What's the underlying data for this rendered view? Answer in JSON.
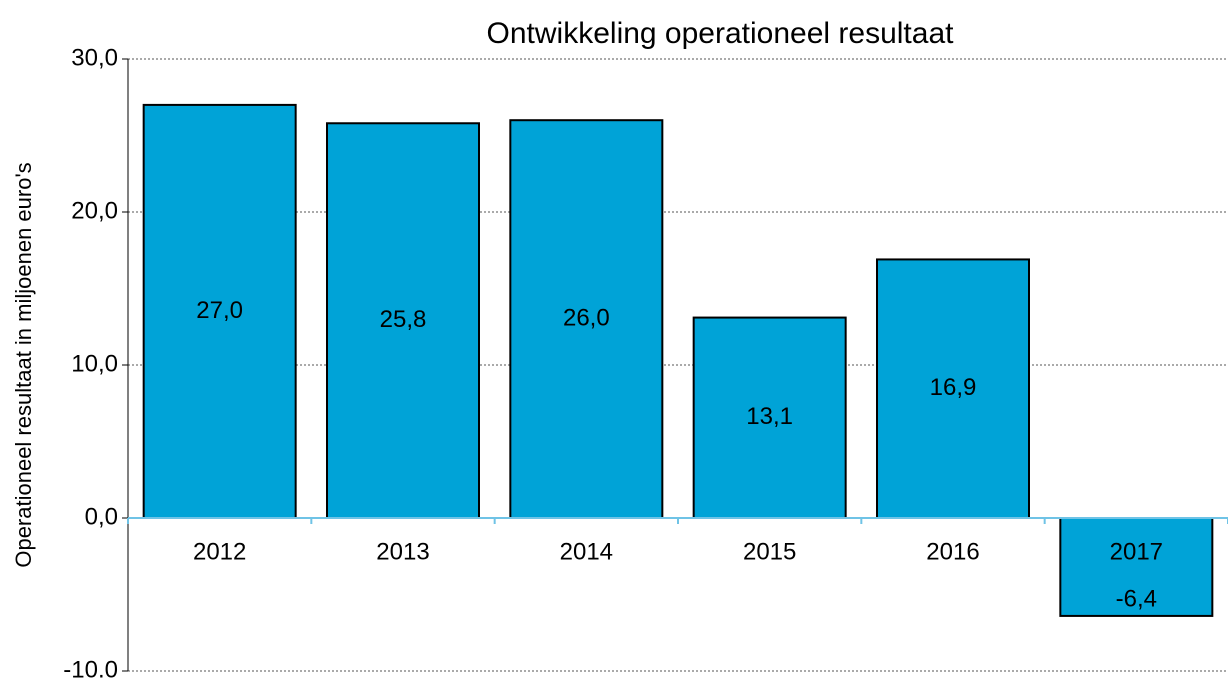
{
  "chart_data": {
    "type": "bar",
    "title": "Ontwikkeling operationeel resultaat",
    "y_label": "Operationeel resultaat in miljoenen euro's",
    "categories": [
      "2012",
      "2013",
      "2014",
      "2015",
      "2016",
      "2017"
    ],
    "values": [
      27.0,
      25.8,
      26.0,
      13.1,
      16.9,
      -6.4
    ],
    "value_labels": [
      "27,0",
      "25,8",
      "26,0",
      "13,1",
      "16,9",
      "-6,4"
    ],
    "color": "#00a3d7",
    "ylim": [
      -10,
      30
    ],
    "yticks": [
      {
        "value": -10,
        "label": "-10.0"
      },
      {
        "value": 0,
        "label": "0,0"
      },
      {
        "value": 10,
        "label": "10,0"
      },
      {
        "value": 20,
        "label": "20,0"
      },
      {
        "value": 30,
        "label": "30,0"
      }
    ],
    "grid": true
  }
}
